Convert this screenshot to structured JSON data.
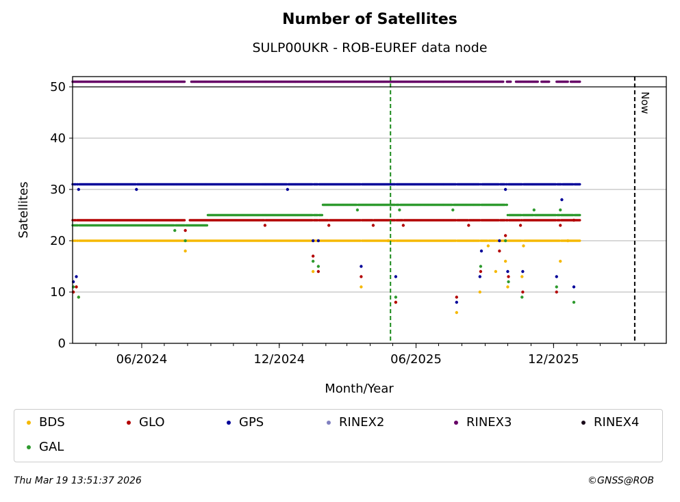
{
  "chart_data": {
    "type": "scatter",
    "title": "Number of Satellites",
    "subtitle": "SULP00UKR - ROB-EUREF data node",
    "xlabel": "Month/Year",
    "ylabel": "Satellites",
    "x_range": [
      "2024-03-01",
      "2026-04-30"
    ],
    "ylim": [
      0,
      52
    ],
    "y_ticks": [
      0,
      10,
      20,
      30,
      40,
      50
    ],
    "x_ticks": [
      {
        "date": "2024-06-01",
        "label": "06/2024"
      },
      {
        "date": "2024-12-01",
        "label": "12/2024"
      },
      {
        "date": "2025-06-01",
        "label": "06/2025"
      },
      {
        "date": "2025-12-01",
        "label": "12/2025"
      }
    ],
    "grid": "horizontal",
    "vertical_markers": [
      {
        "date": "2025-04-28",
        "color": "#1a8a1a",
        "style": "dashed",
        "label": ""
      },
      {
        "date": "2026-03-19",
        "color": "#000000",
        "style": "dashed",
        "label": "Now"
      }
    ],
    "series": [
      {
        "name": "BDS",
        "color": "#f5b800",
        "base": 20,
        "segments": [
          [
            "2024-03-01",
            "2026-01-05"
          ]
        ],
        "gaps": [],
        "outliers": [
          [
            "2024-03-02",
            10
          ],
          [
            "2024-03-06",
            11
          ],
          [
            "2024-03-09",
            9
          ],
          [
            "2024-07-29",
            18
          ],
          [
            "2025-01-15",
            14
          ],
          [
            "2025-03-20",
            11
          ],
          [
            "2025-04-25",
            20
          ],
          [
            "2025-05-05",
            8
          ],
          [
            "2025-07-25",
            6
          ],
          [
            "2025-08-25",
            10
          ],
          [
            "2025-09-05",
            19
          ],
          [
            "2025-09-15",
            14
          ],
          [
            "2025-09-28",
            16
          ],
          [
            "2025-10-01",
            11
          ],
          [
            "2025-10-20",
            13
          ],
          [
            "2025-10-22",
            19
          ],
          [
            "2025-12-10",
            16
          ],
          [
            "2025-12-20",
            20
          ]
        ]
      },
      {
        "name": "GLO",
        "color": "#b30000",
        "base": 24,
        "segments": [
          [
            "2024-03-01",
            "2026-01-05"
          ]
        ],
        "gaps": [
          [
            "2024-07-29",
            "2024-08-03"
          ]
        ],
        "outliers": [
          [
            "2024-03-02",
            10
          ],
          [
            "2024-03-06",
            11
          ],
          [
            "2024-07-29",
            22
          ],
          [
            "2024-11-12",
            23
          ],
          [
            "2025-01-15",
            17
          ],
          [
            "2025-01-22",
            14
          ],
          [
            "2025-02-05",
            23
          ],
          [
            "2025-03-20",
            13
          ],
          [
            "2025-04-05",
            23
          ],
          [
            "2025-05-05",
            8
          ],
          [
            "2025-05-15",
            23
          ],
          [
            "2025-07-25",
            9
          ],
          [
            "2025-08-10",
            23
          ],
          [
            "2025-08-26",
            14
          ],
          [
            "2025-09-20",
            18
          ],
          [
            "2025-09-28",
            21
          ],
          [
            "2025-10-02",
            13
          ],
          [
            "2025-10-18",
            23
          ],
          [
            "2025-10-21",
            10
          ],
          [
            "2025-12-05",
            10
          ],
          [
            "2025-12-10",
            23
          ],
          [
            "2025-12-28",
            24
          ]
        ]
      },
      {
        "name": "GPS",
        "color": "#000099",
        "base": 31,
        "segments": [
          [
            "2024-03-01",
            "2026-01-05"
          ]
        ],
        "gaps": [],
        "outliers": [
          [
            "2024-03-02",
            12
          ],
          [
            "2024-03-06",
            13
          ],
          [
            "2024-03-09",
            30
          ],
          [
            "2024-05-25",
            30
          ],
          [
            "2024-12-12",
            30
          ],
          [
            "2025-01-15",
            20
          ],
          [
            "2025-01-22",
            20
          ],
          [
            "2025-03-20",
            15
          ],
          [
            "2025-05-05",
            13
          ],
          [
            "2025-07-25",
            8
          ],
          [
            "2025-08-25",
            13
          ],
          [
            "2025-08-27",
            18
          ],
          [
            "2025-09-20",
            20
          ],
          [
            "2025-09-28",
            30
          ],
          [
            "2025-10-01",
            14
          ],
          [
            "2025-10-21",
            14
          ],
          [
            "2025-12-05",
            13
          ],
          [
            "2025-12-12",
            28
          ],
          [
            "2025-12-28",
            11
          ]
        ]
      },
      {
        "name": "RINEX2",
        "color": "#8080c0",
        "base": null,
        "segments": [],
        "gaps": [],
        "outliers": []
      },
      {
        "name": "RINEX3",
        "color": "#660066",
        "base": 51,
        "segments": [
          [
            "2024-03-01",
            "2024-07-28"
          ],
          [
            "2024-08-06",
            "2025-09-25"
          ],
          [
            "2025-09-30",
            "2025-10-05"
          ],
          [
            "2025-10-12",
            "2025-11-10"
          ],
          [
            "2025-11-15",
            "2025-11-25"
          ],
          [
            "2025-12-05",
            "2025-12-20"
          ],
          [
            "2025-12-24",
            "2026-01-05"
          ]
        ],
        "gaps": [],
        "outliers": []
      },
      {
        "name": "RINEX4",
        "color": "#1a0a1a",
        "base": null,
        "segments": [],
        "gaps": [],
        "outliers": []
      },
      {
        "name": "GAL",
        "color": "#2e9a2e",
        "base_steps": [
          [
            "2024-03-01",
            "2024-08-28",
            23
          ],
          [
            "2024-08-28",
            "2025-01-28",
            25
          ],
          [
            "2025-01-28",
            "2025-10-01",
            27
          ],
          [
            "2025-10-01",
            "2026-01-05",
            25
          ]
        ],
        "segments": [
          [
            "2024-03-01",
            "2026-01-05"
          ]
        ],
        "gaps": [],
        "outliers": [
          [
            "2024-03-02",
            11
          ],
          [
            "2024-03-09",
            9
          ],
          [
            "2024-07-15",
            22
          ],
          [
            "2024-07-29",
            20
          ],
          [
            "2025-01-15",
            16
          ],
          [
            "2025-01-22",
            15
          ],
          [
            "2025-03-15",
            26
          ],
          [
            "2025-05-05",
            9
          ],
          [
            "2025-05-10",
            26
          ],
          [
            "2025-07-20",
            26
          ],
          [
            "2025-08-26",
            15
          ],
          [
            "2025-09-28",
            20
          ],
          [
            "2025-10-02",
            12
          ],
          [
            "2025-10-20",
            9
          ],
          [
            "2025-11-05",
            26
          ],
          [
            "2025-12-05",
            11
          ],
          [
            "2025-12-10",
            26
          ],
          [
            "2025-12-28",
            8
          ]
        ]
      }
    ]
  },
  "legend": {
    "items": [
      {
        "label": "BDS",
        "color": "#f5b800"
      },
      {
        "label": "GLO",
        "color": "#b30000"
      },
      {
        "label": "GPS",
        "color": "#000099"
      },
      {
        "label": "RINEX2",
        "color": "#8080c0"
      },
      {
        "label": "RINEX3",
        "color": "#660066"
      },
      {
        "label": "RINEX4",
        "color": "#1a0a1a"
      },
      {
        "label": "GAL",
        "color": "#2e9a2e"
      }
    ]
  },
  "footer": {
    "timestamp": "Thu Mar 19 13:51:37 2026",
    "copyright": "©GNSS@ROB"
  }
}
